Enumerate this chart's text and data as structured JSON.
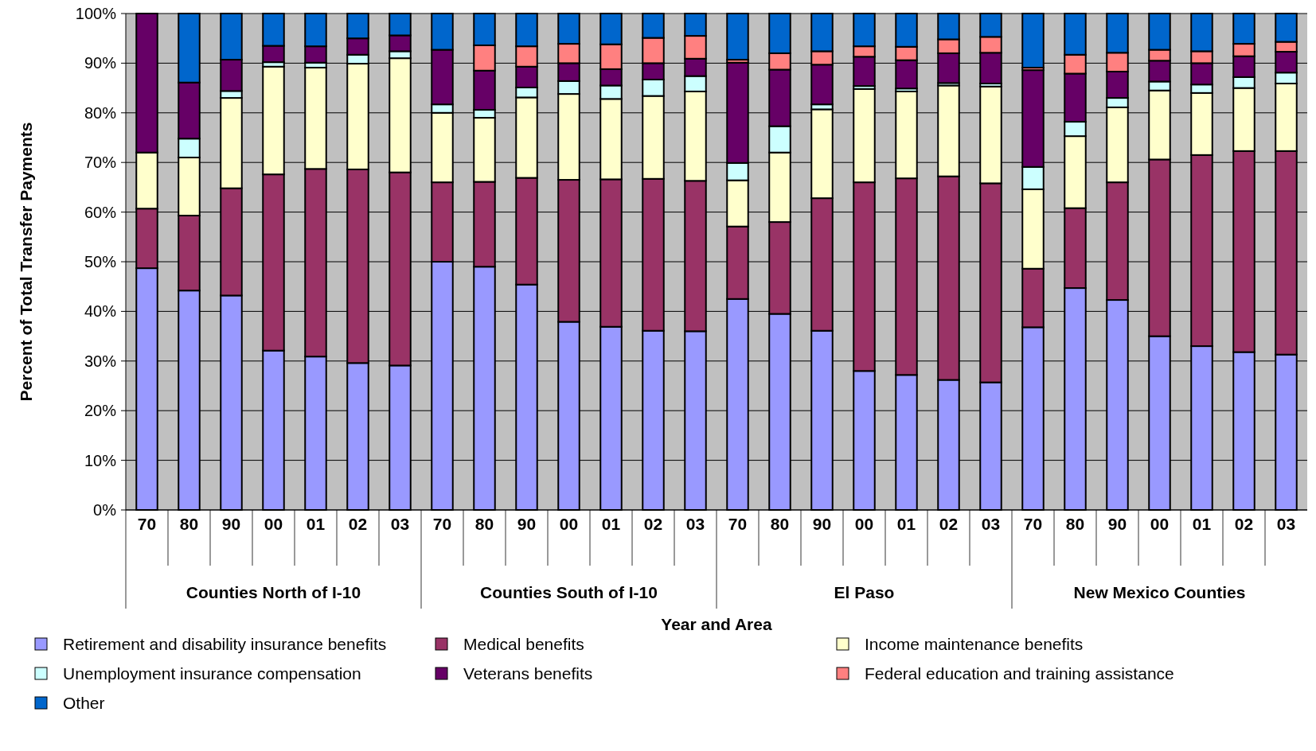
{
  "chart_data": {
    "type": "bar",
    "stacked": true,
    "categories": [
      "70",
      "80",
      "90",
      "00",
      "01",
      "02",
      "03",
      "70",
      "80",
      "90",
      "00",
      "01",
      "02",
      "03",
      "70",
      "80",
      "90",
      "00",
      "01",
      "02",
      "03",
      "70",
      "80",
      "90",
      "00",
      "01",
      "02",
      "03"
    ],
    "xlabel": "Year and Area",
    "ylabel": "Percent of Total Transfer Payments",
    "annotations": [
      "Counties North of I-10",
      "Counties South of I-10",
      "El Paso",
      "New Mexico Counties"
    ],
    "ylim": [
      0,
      100
    ],
    "yticks": [
      {
        "value": 0,
        "label": "0%"
      },
      {
        "value": 10,
        "label": "10%"
      },
      {
        "value": 20,
        "label": "20%"
      },
      {
        "value": 30,
        "label": "30%"
      },
      {
        "value": 40,
        "label": "40%"
      },
      {
        "value": 50,
        "label": "50%"
      },
      {
        "value": 60,
        "label": "60%"
      },
      {
        "value": 70,
        "label": "70%"
      },
      {
        "value": 80,
        "label": "80%"
      },
      {
        "value": 90,
        "label": "90%"
      },
      {
        "value": 100,
        "label": "100%"
      }
    ],
    "grid": "y",
    "legend": "bottom",
    "series": [
      {
        "name": "Retirement and disability insurance benefits",
        "color": "#9999ff",
        "values": [
          48.7,
          44.2,
          43.2,
          32.1,
          30.9,
          29.6,
          29.1,
          50.0,
          49.0,
          45.4,
          37.9,
          36.9,
          36.1,
          36.0,
          42.5,
          39.5,
          36.1,
          28.0,
          27.2,
          26.2,
          25.7,
          36.8,
          44.7,
          42.3,
          35.0,
          33.0,
          31.8,
          31.3
        ]
      },
      {
        "name": "Medical benefits",
        "color": "#993366",
        "values": [
          12.0,
          15.1,
          21.6,
          35.5,
          37.8,
          39.0,
          38.9,
          16.0,
          17.1,
          21.5,
          28.6,
          29.7,
          30.6,
          30.3,
          14.6,
          18.5,
          26.7,
          38.0,
          39.6,
          41.0,
          40.1,
          11.8,
          16.1,
          23.7,
          35.6,
          38.5,
          40.5,
          41.0
        ]
      },
      {
        "name": "Income maintenance benefits",
        "color": "#ffffcc",
        "values": [
          11.3,
          11.7,
          18.2,
          21.7,
          20.4,
          21.3,
          23.0,
          14.0,
          12.9,
          16.2,
          17.3,
          16.2,
          16.7,
          18.0,
          9.3,
          14.0,
          17.9,
          18.8,
          17.5,
          18.3,
          19.5,
          16.0,
          14.5,
          15.1,
          13.9,
          12.5,
          12.7,
          13.6
        ]
      },
      {
        "name": "Unemployment insurance compensation",
        "color": "#ccffff",
        "values": [
          0,
          3.8,
          1.4,
          0.9,
          1.0,
          1.8,
          1.4,
          1.7,
          1.6,
          2.0,
          2.6,
          2.7,
          3.3,
          3.1,
          3.5,
          5.3,
          1.0,
          0.6,
          0.6,
          0.5,
          0.6,
          4.5,
          2.9,
          1.9,
          1.8,
          1.7,
          2.2,
          2.2
        ]
      },
      {
        "name": "Veterans benefits",
        "color": "#660066",
        "values": [
          28.0,
          11.3,
          6.3,
          3.3,
          3.3,
          3.3,
          3.2,
          11.0,
          7.9,
          4.2,
          3.6,
          3.3,
          3.3,
          3.5,
          20.2,
          11.4,
          8.0,
          5.9,
          5.7,
          6.0,
          6.2,
          19.5,
          9.7,
          5.3,
          4.2,
          4.3,
          4.2,
          4.2
        ]
      },
      {
        "name": "Federal education and training assistance",
        "color": "#ff8080",
        "values": [
          0,
          0,
          0,
          0,
          0,
          0,
          0,
          0,
          5.1,
          4.1,
          3.9,
          5.0,
          5.1,
          4.6,
          0.6,
          3.3,
          2.7,
          2.1,
          2.7,
          2.8,
          3.2,
          0.5,
          3.8,
          3.8,
          2.2,
          2.4,
          2.5,
          2.0
        ]
      },
      {
        "name": "Other",
        "color": "#0066cc",
        "values": [
          0,
          13.9,
          9.3,
          6.5,
          6.6,
          5.0,
          4.4,
          7.3,
          6.4,
          6.6,
          6.1,
          6.2,
          4.9,
          4.5,
          9.3,
          8.0,
          7.6,
          6.6,
          6.7,
          5.2,
          4.7,
          10.9,
          8.3,
          7.9,
          7.3,
          7.6,
          6.1,
          5.7
        ]
      }
    ]
  }
}
